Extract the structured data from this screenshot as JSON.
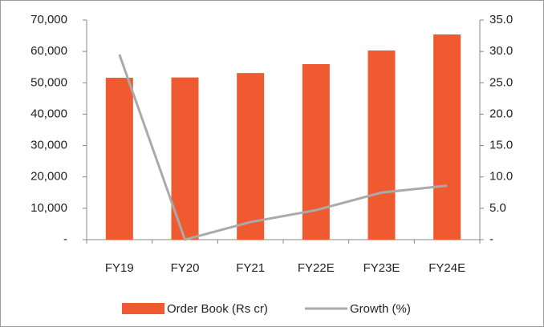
{
  "chart_data": {
    "type": "bar",
    "categories": [
      "FY19",
      "FY20",
      "FY21",
      "FY22E",
      "FY23E",
      "FY24E"
    ],
    "series": [
      {
        "name": "Order Book (Rs cr)",
        "color": "#f05a30",
        "type": "bar",
        "values": [
          51600,
          51700,
          53100,
          55950,
          60300,
          65400
        ]
      },
      {
        "name": "Growth (%)",
        "color": "#aaaaaa",
        "type": "line",
        "axis": "y2",
        "values": [
          29.5,
          0,
          2.8,
          4.7,
          7.5,
          8.6
        ]
      }
    ],
    "ylim": [
      0,
      70000
    ],
    "yticks": [
      {
        "value": 0,
        "label": "-"
      },
      {
        "value": 10000,
        "label": "10,000"
      },
      {
        "value": 20000,
        "label": "20,000"
      },
      {
        "value": 30000,
        "label": "30,000"
      },
      {
        "value": 40000,
        "label": "40,000"
      },
      {
        "value": 50000,
        "label": "50,000"
      },
      {
        "value": 60000,
        "label": "60,000"
      },
      {
        "value": 70000,
        "label": "70,000"
      }
    ],
    "y2lim": [
      0,
      35
    ],
    "y2ticks": [
      {
        "value": 0,
        "label": "-"
      },
      {
        "value": 5,
        "label": "5.0"
      },
      {
        "value": 10,
        "label": "10.0"
      },
      {
        "value": 15,
        "label": "15.0"
      },
      {
        "value": 20,
        "label": "20.0"
      },
      {
        "value": 25,
        "label": "25.0"
      },
      {
        "value": 30,
        "label": "30.0"
      },
      {
        "value": 35,
        "label": "35.0"
      }
    ],
    "grid": false
  }
}
